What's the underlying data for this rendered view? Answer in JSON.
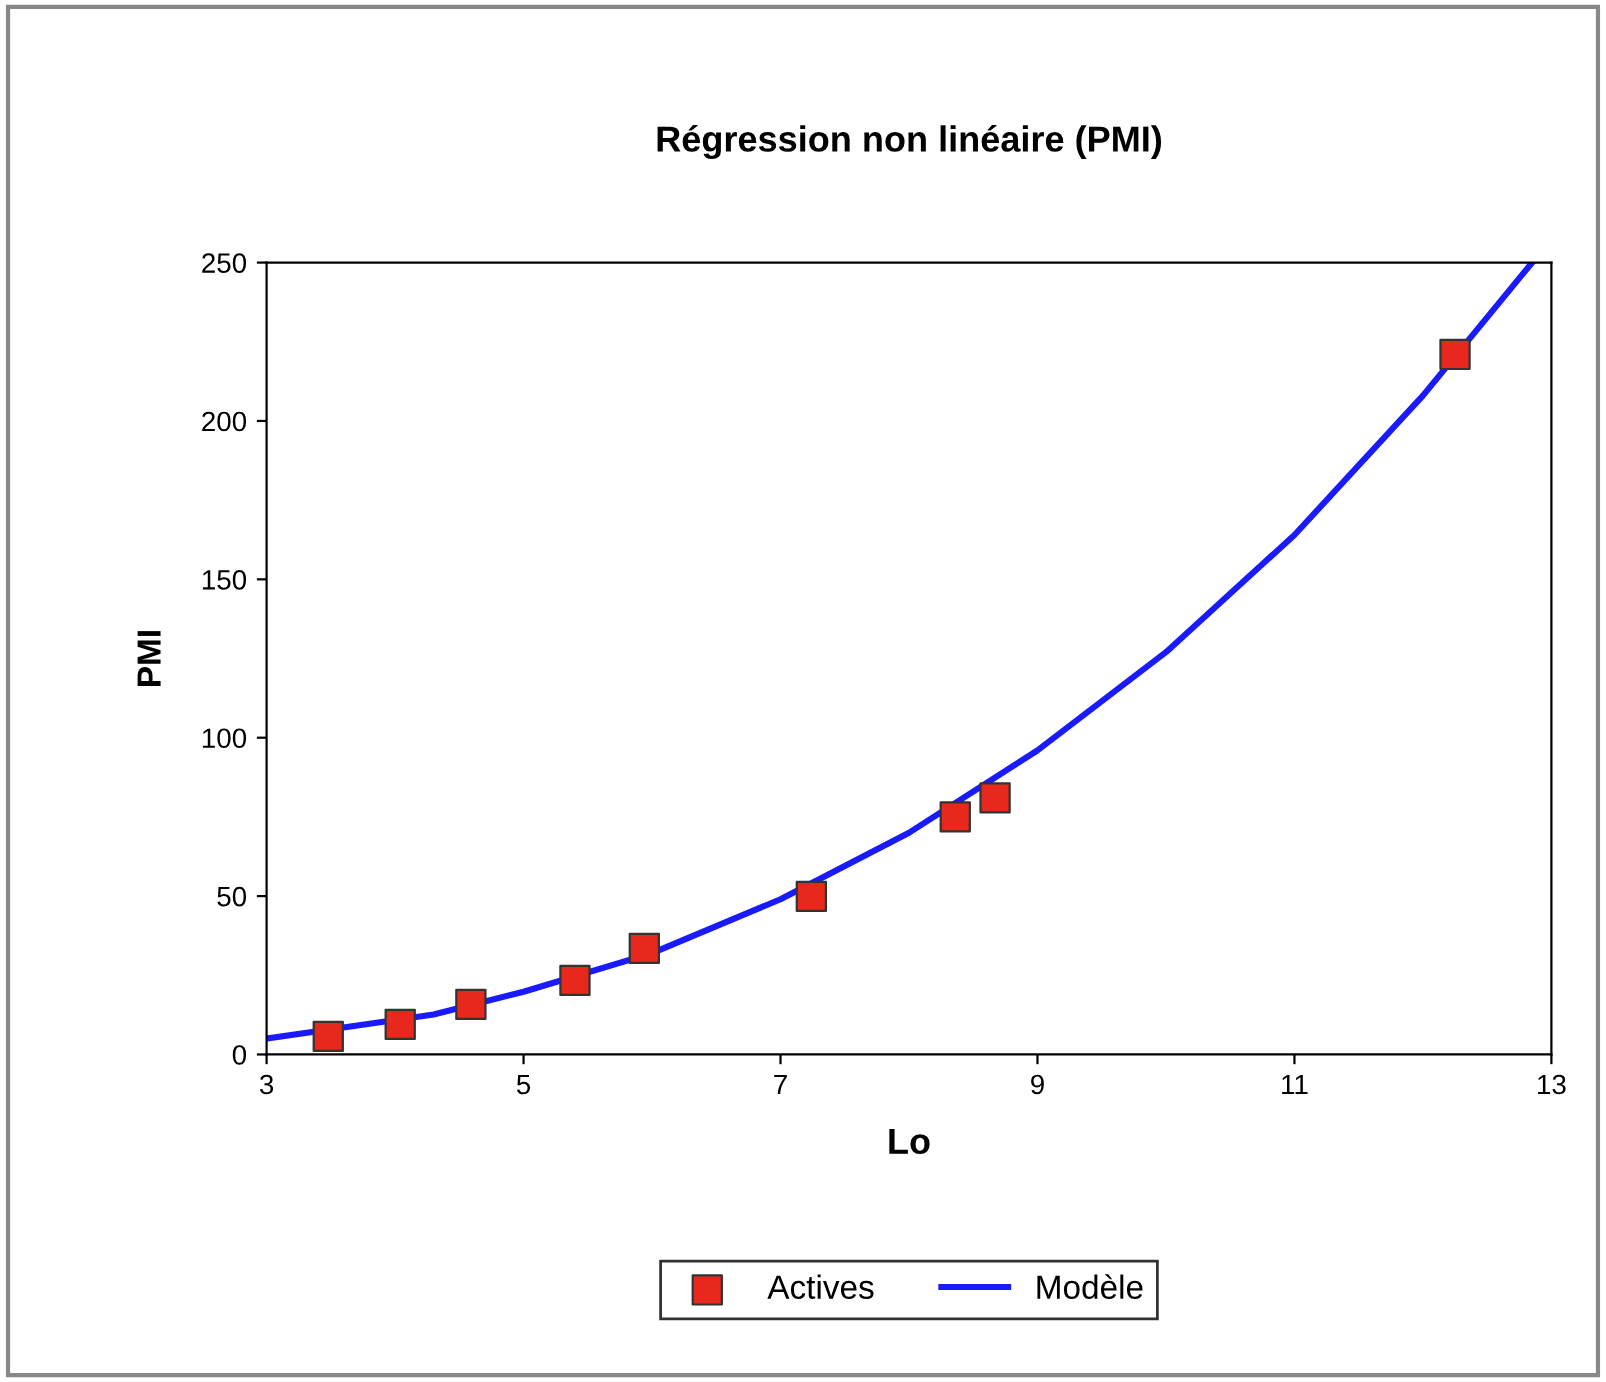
{
  "chart_data": {
    "type": "scatter",
    "title": "Régression non linéaire (PMI)",
    "xlabel": "Lo",
    "ylabel": "PMI",
    "xlim": [
      3,
      13
    ],
    "xticks": [
      3,
      5,
      7,
      9,
      11,
      13
    ],
    "ylim": [
      0,
      250
    ],
    "yticks": [
      0,
      50,
      100,
      150,
      200,
      250
    ],
    "grid": false,
    "legend": "bottom",
    "series": [
      {
        "name": "Actives",
        "marker": "square",
        "color": "#e8281c",
        "x": [
          3.48,
          4.04,
          4.59,
          5.4,
          5.94,
          7.24,
          8.36,
          8.67,
          12.25
        ],
        "values": [
          5.7,
          9.5,
          15.8,
          23.4,
          33.5,
          49.9,
          75,
          81,
          221
        ]
      },
      {
        "name": "Modèle",
        "type": "line",
        "line_style": "solid",
        "color": "#1a1aff",
        "x": [
          3,
          4.3,
          5,
          6,
          7,
          8,
          9,
          10,
          11,
          12,
          12.85
        ],
        "values": [
          5,
          12.6,
          19.8,
          32,
          49,
          70,
          96,
          127,
          164,
          208,
          250
        ]
      }
    ]
  }
}
